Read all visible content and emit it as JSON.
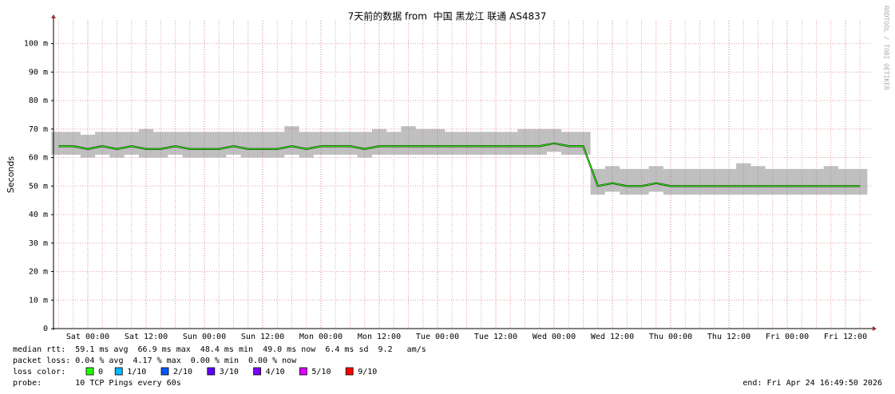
{
  "chart_data": {
    "type": "line",
    "title": "7天前的数据 from  中国 黑龙江 联通 AS4837",
    "y_label": "Seconds",
    "watermark": "RRDTOOL / TOBI OETIKER",
    "categories": [
      null,
      null,
      "Sat 00:00",
      null,
      null,
      null,
      "Sat 12:00",
      null,
      null,
      null,
      "Sun 00:00",
      null,
      null,
      null,
      "Sun 12:00",
      null,
      null,
      null,
      "Mon 00:00",
      null,
      null,
      null,
      "Mon 12:00",
      null,
      null,
      null,
      "Tue 00:00",
      null,
      null,
      null,
      "Tue 12:00",
      null,
      null,
      null,
      "Wed 00:00",
      null,
      null,
      null,
      "Wed 12:00",
      null,
      null,
      null,
      "Thu 00:00",
      null,
      null,
      null,
      "Thu 12:00",
      null,
      null,
      null,
      "Fri 00:00",
      null,
      null,
      null,
      "Fri 12:00",
      null
    ],
    "values": [
      0.064,
      0.064,
      0.063,
      0.064,
      0.063,
      0.064,
      0.063,
      0.063,
      0.064,
      0.063,
      0.063,
      0.063,
      0.064,
      0.063,
      0.063,
      0.063,
      0.064,
      0.063,
      0.064,
      0.064,
      0.064,
      0.063,
      0.064,
      0.064,
      0.064,
      0.064,
      0.064,
      0.064,
      0.064,
      0.064,
      0.064,
      0.064,
      0.064,
      0.064,
      0.065,
      0.064,
      0.064,
      0.05,
      0.051,
      0.05,
      0.05,
      0.051,
      0.05,
      0.05,
      0.05,
      0.05,
      0.05,
      0.05,
      0.05,
      0.05,
      0.05,
      0.05,
      0.05,
      0.05,
      0.05,
      0.05
    ],
    "values_low": [
      0.061,
      0.061,
      0.06,
      0.061,
      0.06,
      0.061,
      0.06,
      0.06,
      0.061,
      0.06,
      0.06,
      0.06,
      0.061,
      0.06,
      0.06,
      0.06,
      0.061,
      0.06,
      0.061,
      0.061,
      0.061,
      0.06,
      0.061,
      0.061,
      0.061,
      0.061,
      0.061,
      0.061,
      0.061,
      0.061,
      0.061,
      0.061,
      0.061,
      0.061,
      0.062,
      0.061,
      0.061,
      0.047,
      0.048,
      0.047,
      0.047,
      0.048,
      0.047,
      0.047,
      0.047,
      0.047,
      0.047,
      0.047,
      0.047,
      0.047,
      0.047,
      0.047,
      0.047,
      0.047,
      0.047,
      0.047
    ],
    "values_high": [
      0.069,
      0.069,
      0.068,
      0.069,
      0.069,
      0.069,
      0.07,
      0.069,
      0.069,
      0.069,
      0.069,
      0.069,
      0.069,
      0.069,
      0.069,
      0.069,
      0.071,
      0.069,
      0.069,
      0.069,
      0.069,
      0.069,
      0.07,
      0.069,
      0.071,
      0.07,
      0.07,
      0.069,
      0.069,
      0.069,
      0.069,
      0.069,
      0.07,
      0.07,
      0.07,
      0.069,
      0.069,
      0.056,
      0.057,
      0.056,
      0.056,
      0.057,
      0.056,
      0.056,
      0.056,
      0.056,
      0.056,
      0.058,
      0.057,
      0.056,
      0.056,
      0.056,
      0.056,
      0.057,
      0.056,
      0.056
    ],
    "color": "#26ff00",
    "smoke_color": "#8a8a8a",
    "ylim": [
      0,
      0.108
    ],
    "yticks": [
      0,
      {
        "value": 0.01,
        "label": "10 m"
      },
      {
        "value": 0.02,
        "label": "20 m"
      },
      {
        "value": 0.03,
        "label": "30 m"
      },
      {
        "value": 0.04,
        "label": "40 m"
      },
      {
        "value": 0.05,
        "label": "50 m"
      },
      {
        "value": 0.06,
        "label": "60 m"
      },
      {
        "value": 0.07,
        "label": "70 m"
      },
      {
        "value": 0.08,
        "label": "80 m"
      },
      {
        "value": 0.09,
        "label": "90 m"
      },
      {
        "value": 0.1,
        "label": "100 m"
      }
    ],
    "grid": true,
    "footer": {
      "median_rtt": "median rtt:  59.1 ms avg  66.9 ms max  48.4 ms min  49.0 ms now  6.4 ms sd  9.2   am/s",
      "packet_loss": "packet loss: 0.04 % avg  4.17 % max  0.00 % min  0.00 % now",
      "loss_color_label": "loss color:",
      "loss_colors": [
        {
          "label": "0",
          "color": "#26ff00"
        },
        {
          "label": "1/10",
          "color": "#00b8ff"
        },
        {
          "label": "2/10",
          "color": "#0059ff"
        },
        {
          "label": "3/10",
          "color": "#5e00ff"
        },
        {
          "label": "4/10",
          "color": "#7e00ff"
        },
        {
          "label": "5/10",
          "color": "#dd00ff"
        },
        {
          "label": "9/10",
          "color": "#ff0000"
        }
      ],
      "probe": "probe:       10 TCP Pings every 60s",
      "end": "end: Fri Apr 24 16:49:50 2026"
    }
  }
}
